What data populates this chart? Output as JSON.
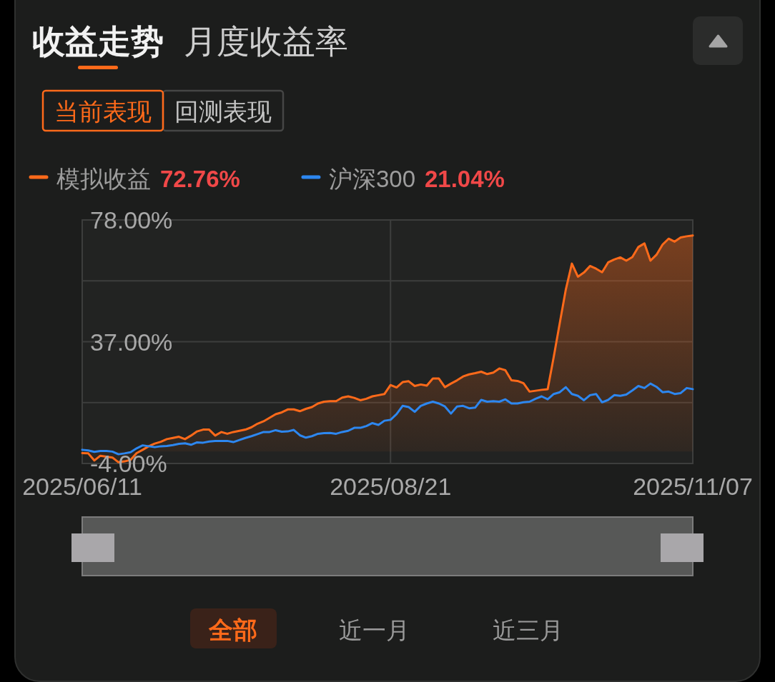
{
  "chart_data": {
    "type": "line",
    "title": "收益走势",
    "categories": [
      "2025/06/11",
      null,
      null,
      null,
      null,
      null,
      null,
      null,
      null,
      null,
      null,
      null,
      null,
      null,
      null,
      null,
      null,
      null,
      null,
      null,
      null,
      null,
      null,
      null,
      null,
      null,
      null,
      null,
      null,
      null,
      null,
      null,
      null,
      null,
      null,
      null,
      null,
      null,
      null,
      null,
      null,
      null,
      null,
      null,
      null,
      null,
      null,
      null,
      null,
      null,
      null,
      "2025/08/21",
      null,
      null,
      null,
      null,
      null,
      null,
      null,
      null,
      null,
      null,
      null,
      null,
      null,
      null,
      null,
      null,
      null,
      null,
      null,
      null,
      null,
      null,
      null,
      null,
      null,
      null,
      null,
      null,
      null,
      null,
      null,
      null,
      null,
      null,
      null,
      null,
      null,
      null,
      null,
      null,
      null,
      null,
      null,
      null,
      null,
      null,
      null,
      null,
      null,
      "2025/11/07"
    ],
    "series": [
      {
        "name": "模拟收益",
        "type": "area",
        "color": "#ff6a1a",
        "values": [
          -0.5,
          -0.6,
          -3.0,
          -1.4,
          -1.7,
          -2.0,
          -3.6,
          -3.3,
          -2.8,
          -0.5,
          0.6,
          1.8,
          2.7,
          3.3,
          4.2,
          4.6,
          5.0,
          4.2,
          5.4,
          6.8,
          7.4,
          7.4,
          5.4,
          6.6,
          6.0,
          6.6,
          7.0,
          7.4,
          8.2,
          9.4,
          10.2,
          11.4,
          12.6,
          13.2,
          14.2,
          14.2,
          13.6,
          14.4,
          15.0,
          16.2,
          16.8,
          17.0,
          17.0,
          18.2,
          18.6,
          18.1,
          17.3,
          17.8,
          18.6,
          19.0,
          19.4,
          22.4,
          21.6,
          23.4,
          23.7,
          22.1,
          22.6,
          22.2,
          24.6,
          24.6,
          21.7,
          22.9,
          24.0,
          25.3,
          26.0,
          26.4,
          26.9,
          26.1,
          26.6,
          28.0,
          27.4,
          24.0,
          23.8,
          23.0,
          20.2,
          20.5,
          20.8,
          21.0,
          31.9,
          43.3,
          54.6,
          63.3,
          58.9,
          60.3,
          62.5,
          61.6,
          60.4,
          63.7,
          64.7,
          65.4,
          64.3,
          65.5,
          68.9,
          70.1,
          64.3,
          66.3,
          69.7,
          71.7,
          70.7,
          72.1,
          72.5,
          72.76
        ]
      },
      {
        "name": "沪深300",
        "color": "#2d87f0",
        "values": [
          0.6,
          0.4,
          -0.1,
          0.2,
          0.2,
          0.0,
          -0.9,
          -0.6,
          -0.2,
          1.1,
          2.1,
          1.8,
          1.5,
          1.8,
          1.9,
          2.2,
          2.6,
          2.8,
          2.3,
          3.1,
          3.0,
          3.4,
          3.6,
          3.6,
          3.6,
          3.2,
          3.9,
          4.6,
          5.2,
          5.9,
          6.6,
          6.6,
          7.2,
          6.7,
          6.8,
          7.3,
          5.5,
          4.7,
          5.2,
          6.0,
          6.2,
          6.3,
          6.0,
          6.6,
          7.0,
          8.0,
          8.0,
          8.6,
          9.6,
          9.0,
          10.4,
          10.7,
          12.6,
          15.4,
          15.0,
          13.4,
          15.4,
          16.2,
          16.8,
          16.2,
          15.2,
          12.8,
          15.2,
          15.4,
          14.6,
          14.8,
          17.4,
          16.8,
          17.0,
          16.8,
          17.6,
          16.2,
          16.2,
          16.6,
          16.8,
          17.8,
          18.6,
          17.6,
          19.4,
          20.0,
          21.7,
          19.4,
          18.8,
          17.3,
          19.0,
          19.4,
          16.6,
          17.4,
          19.0,
          18.8,
          19.2,
          20.6,
          22.1,
          21.4,
          22.9,
          21.8,
          20.0,
          20.2,
          19.4,
          19.7,
          21.4,
          21.04
        ]
      }
    ],
    "ylim": [
      -4,
      78
    ],
    "yticks": [
      {
        "value": 78,
        "label": "78.00%"
      },
      {
        "value": 57.5,
        "label": null
      },
      {
        "value": 37,
        "label": "37.00%"
      },
      {
        "value": 16.5,
        "label": null
      },
      {
        "value": -4,
        "label": "-4.00%"
      }
    ],
    "grid": true,
    "legend": "top left",
    "annotations": [
      "月度收益率",
      "当前表现",
      "回测表现",
      "72.76%",
      "21.04%",
      "全部",
      "近一月",
      "近三月"
    ]
  }
}
